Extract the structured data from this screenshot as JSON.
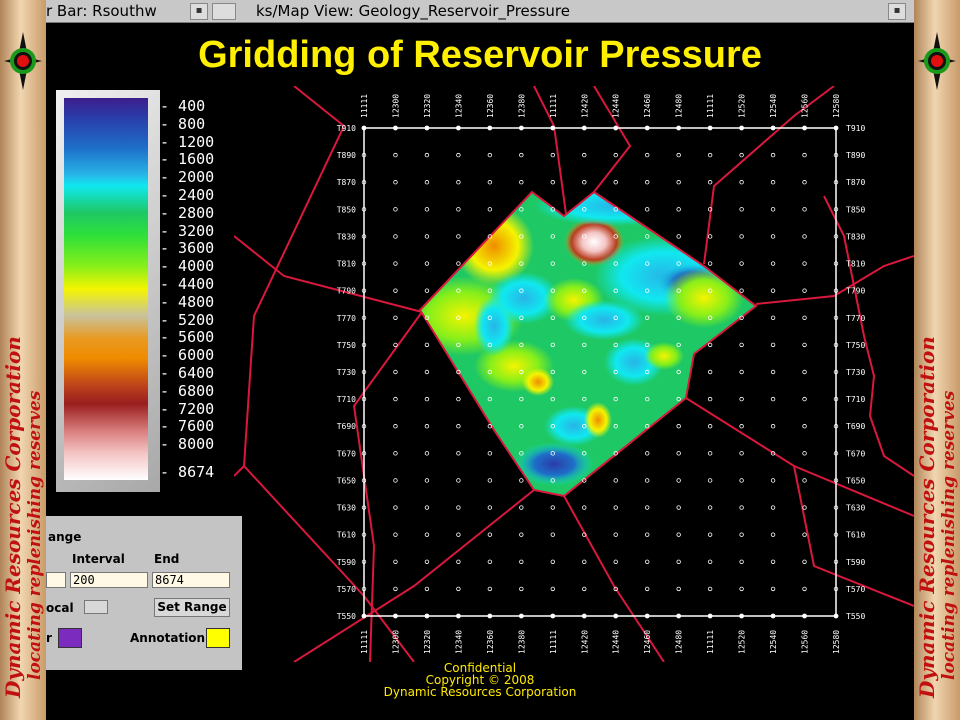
{
  "window": {
    "tab1_title": "r Bar: Rsouthw",
    "tab2_title": "ks/Map View: Geology_Reservoir_Pressure"
  },
  "slide_title": "Gridding of Reservoir Pressure",
  "branding": {
    "left_vertical_text_1": "Dynamic Resources Corporation",
    "left_vertical_text_2": "locating replenishing reserves",
    "right_vertical_text_1": "Dynamic Resources Corporation",
    "right_vertical_text_2": "locating replenishing reserves"
  },
  "legend": {
    "ticks": [
      "400",
      "800",
      "1200",
      "1600",
      "2000",
      "2400",
      "2800",
      "3200",
      "3600",
      "4000",
      "4400",
      "4800",
      "5200",
      "5600",
      "6000",
      "6400",
      "6800",
      "7200",
      "7600",
      "8000",
      "8674"
    ]
  },
  "range_panel": {
    "heading": "ange",
    "interval_label": "Interval",
    "end_label": "End",
    "interval_value": "200",
    "end_value": "8674",
    "mode_label": "ocal",
    "set_range_label": "Set Range",
    "color_left_label": "r",
    "annotation_label": "Annotation",
    "color_left_value": "#7b2cbf",
    "annotation_color": "#ffff00"
  },
  "map": {
    "top_labels": [
      "11111",
      "12300",
      "12320",
      "12340",
      "12360",
      "12380",
      "11111",
      "12420",
      "12440",
      "12460",
      "12480",
      "11111",
      "12520",
      "12540",
      "12560",
      "12580"
    ],
    "bottom_labels": [
      "11111",
      "12300",
      "12320",
      "12340",
      "12360",
      "12380",
      "11111",
      "12420",
      "12440",
      "12460",
      "12480",
      "11111",
      "12520",
      "12540",
      "12560",
      "12580"
    ],
    "left_labels": [
      "T910",
      "T890",
      "T870",
      "T850",
      "T830",
      "T810",
      "T790",
      "T770",
      "T750",
      "T730",
      "T710",
      "T690",
      "T670",
      "T650",
      "T630",
      "T610",
      "T590",
      "T570",
      "T550"
    ],
    "right_labels": [
      "T910",
      "T890",
      "T870",
      "T850",
      "T830",
      "T810",
      "T790",
      "T770",
      "T750",
      "T730",
      "T710",
      "T690",
      "T670",
      "T650",
      "T630",
      "T610",
      "T590",
      "T570",
      "T550"
    ]
  },
  "footer": {
    "line1": "Confidential",
    "line2": "Copyright © 2008",
    "line3": "Dynamic Resources Corporation"
  }
}
